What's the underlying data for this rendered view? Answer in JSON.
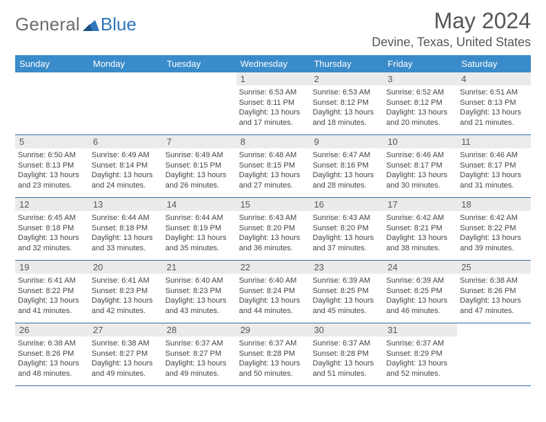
{
  "brand": {
    "general": "General",
    "blue": "Blue"
  },
  "header": {
    "title": "May 2024",
    "location": "Devine, Texas, United States"
  },
  "colors": {
    "header_bar": "#3a8bc9",
    "week_border": "#2f6aa0",
    "daynum_bg": "#ebebeb",
    "text": "#444444",
    "title": "#555555",
    "brand_general": "#6b6b6b",
    "brand_blue": "#2f76ba"
  },
  "weekdays": [
    "Sunday",
    "Monday",
    "Tuesday",
    "Wednesday",
    "Thursday",
    "Friday",
    "Saturday"
  ],
  "weeks": [
    [
      {
        "empty": true
      },
      {
        "empty": true
      },
      {
        "empty": true
      },
      {
        "num": "1",
        "sunrise": "Sunrise: 6:53 AM",
        "sunset": "Sunset: 8:11 PM",
        "dl1": "Daylight: 13 hours",
        "dl2": "and 17 minutes."
      },
      {
        "num": "2",
        "sunrise": "Sunrise: 6:53 AM",
        "sunset": "Sunset: 8:12 PM",
        "dl1": "Daylight: 13 hours",
        "dl2": "and 18 minutes."
      },
      {
        "num": "3",
        "sunrise": "Sunrise: 6:52 AM",
        "sunset": "Sunset: 8:12 PM",
        "dl1": "Daylight: 13 hours",
        "dl2": "and 20 minutes."
      },
      {
        "num": "4",
        "sunrise": "Sunrise: 6:51 AM",
        "sunset": "Sunset: 8:13 PM",
        "dl1": "Daylight: 13 hours",
        "dl2": "and 21 minutes."
      }
    ],
    [
      {
        "num": "5",
        "sunrise": "Sunrise: 6:50 AM",
        "sunset": "Sunset: 8:13 PM",
        "dl1": "Daylight: 13 hours",
        "dl2": "and 23 minutes."
      },
      {
        "num": "6",
        "sunrise": "Sunrise: 6:49 AM",
        "sunset": "Sunset: 8:14 PM",
        "dl1": "Daylight: 13 hours",
        "dl2": "and 24 minutes."
      },
      {
        "num": "7",
        "sunrise": "Sunrise: 6:49 AM",
        "sunset": "Sunset: 8:15 PM",
        "dl1": "Daylight: 13 hours",
        "dl2": "and 26 minutes."
      },
      {
        "num": "8",
        "sunrise": "Sunrise: 6:48 AM",
        "sunset": "Sunset: 8:15 PM",
        "dl1": "Daylight: 13 hours",
        "dl2": "and 27 minutes."
      },
      {
        "num": "9",
        "sunrise": "Sunrise: 6:47 AM",
        "sunset": "Sunset: 8:16 PM",
        "dl1": "Daylight: 13 hours",
        "dl2": "and 28 minutes."
      },
      {
        "num": "10",
        "sunrise": "Sunrise: 6:46 AM",
        "sunset": "Sunset: 8:17 PM",
        "dl1": "Daylight: 13 hours",
        "dl2": "and 30 minutes."
      },
      {
        "num": "11",
        "sunrise": "Sunrise: 6:46 AM",
        "sunset": "Sunset: 8:17 PM",
        "dl1": "Daylight: 13 hours",
        "dl2": "and 31 minutes."
      }
    ],
    [
      {
        "num": "12",
        "sunrise": "Sunrise: 6:45 AM",
        "sunset": "Sunset: 8:18 PM",
        "dl1": "Daylight: 13 hours",
        "dl2": "and 32 minutes."
      },
      {
        "num": "13",
        "sunrise": "Sunrise: 6:44 AM",
        "sunset": "Sunset: 8:18 PM",
        "dl1": "Daylight: 13 hours",
        "dl2": "and 33 minutes."
      },
      {
        "num": "14",
        "sunrise": "Sunrise: 6:44 AM",
        "sunset": "Sunset: 8:19 PM",
        "dl1": "Daylight: 13 hours",
        "dl2": "and 35 minutes."
      },
      {
        "num": "15",
        "sunrise": "Sunrise: 6:43 AM",
        "sunset": "Sunset: 8:20 PM",
        "dl1": "Daylight: 13 hours",
        "dl2": "and 36 minutes."
      },
      {
        "num": "16",
        "sunrise": "Sunrise: 6:43 AM",
        "sunset": "Sunset: 8:20 PM",
        "dl1": "Daylight: 13 hours",
        "dl2": "and 37 minutes."
      },
      {
        "num": "17",
        "sunrise": "Sunrise: 6:42 AM",
        "sunset": "Sunset: 8:21 PM",
        "dl1": "Daylight: 13 hours",
        "dl2": "and 38 minutes."
      },
      {
        "num": "18",
        "sunrise": "Sunrise: 6:42 AM",
        "sunset": "Sunset: 8:22 PM",
        "dl1": "Daylight: 13 hours",
        "dl2": "and 39 minutes."
      }
    ],
    [
      {
        "num": "19",
        "sunrise": "Sunrise: 6:41 AM",
        "sunset": "Sunset: 8:22 PM",
        "dl1": "Daylight: 13 hours",
        "dl2": "and 41 minutes."
      },
      {
        "num": "20",
        "sunrise": "Sunrise: 6:41 AM",
        "sunset": "Sunset: 8:23 PM",
        "dl1": "Daylight: 13 hours",
        "dl2": "and 42 minutes."
      },
      {
        "num": "21",
        "sunrise": "Sunrise: 6:40 AM",
        "sunset": "Sunset: 8:23 PM",
        "dl1": "Daylight: 13 hours",
        "dl2": "and 43 minutes."
      },
      {
        "num": "22",
        "sunrise": "Sunrise: 6:40 AM",
        "sunset": "Sunset: 8:24 PM",
        "dl1": "Daylight: 13 hours",
        "dl2": "and 44 minutes."
      },
      {
        "num": "23",
        "sunrise": "Sunrise: 6:39 AM",
        "sunset": "Sunset: 8:25 PM",
        "dl1": "Daylight: 13 hours",
        "dl2": "and 45 minutes."
      },
      {
        "num": "24",
        "sunrise": "Sunrise: 6:39 AM",
        "sunset": "Sunset: 8:25 PM",
        "dl1": "Daylight: 13 hours",
        "dl2": "and 46 minutes."
      },
      {
        "num": "25",
        "sunrise": "Sunrise: 6:38 AM",
        "sunset": "Sunset: 8:26 PM",
        "dl1": "Daylight: 13 hours",
        "dl2": "and 47 minutes."
      }
    ],
    [
      {
        "num": "26",
        "sunrise": "Sunrise: 6:38 AM",
        "sunset": "Sunset: 8:26 PM",
        "dl1": "Daylight: 13 hours",
        "dl2": "and 48 minutes."
      },
      {
        "num": "27",
        "sunrise": "Sunrise: 6:38 AM",
        "sunset": "Sunset: 8:27 PM",
        "dl1": "Daylight: 13 hours",
        "dl2": "and 49 minutes."
      },
      {
        "num": "28",
        "sunrise": "Sunrise: 6:37 AM",
        "sunset": "Sunset: 8:27 PM",
        "dl1": "Daylight: 13 hours",
        "dl2": "and 49 minutes."
      },
      {
        "num": "29",
        "sunrise": "Sunrise: 6:37 AM",
        "sunset": "Sunset: 8:28 PM",
        "dl1": "Daylight: 13 hours",
        "dl2": "and 50 minutes."
      },
      {
        "num": "30",
        "sunrise": "Sunrise: 6:37 AM",
        "sunset": "Sunset: 8:28 PM",
        "dl1": "Daylight: 13 hours",
        "dl2": "and 51 minutes."
      },
      {
        "num": "31",
        "sunrise": "Sunrise: 6:37 AM",
        "sunset": "Sunset: 8:29 PM",
        "dl1": "Daylight: 13 hours",
        "dl2": "and 52 minutes."
      },
      {
        "empty": true
      }
    ]
  ]
}
